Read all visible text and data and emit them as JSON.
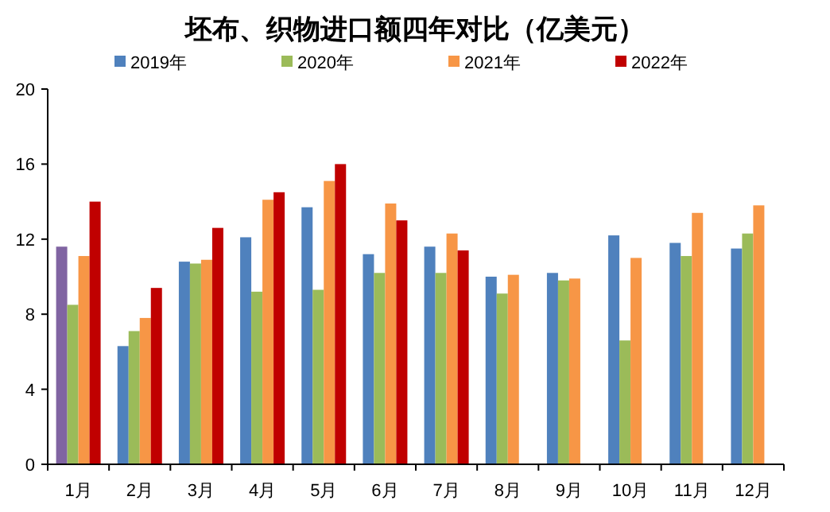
{
  "chart_data": {
    "type": "bar",
    "title": "坯布、织物进口额四年对比（亿美元）",
    "categories": [
      "1月",
      "2月",
      "3月",
      "4月",
      "5月",
      "6月",
      "7月",
      "8月",
      "9月",
      "10月",
      "11月",
      "12月"
    ],
    "series": [
      {
        "name": "2019年",
        "color": "#4f81bd",
        "colors": [
          "#8064a2",
          "#4f81bd",
          "#4f81bd",
          "#4f81bd",
          "#4f81bd",
          "#4f81bd",
          "#4f81bd",
          "#4f81bd",
          "#4f81bd",
          "#4f81bd",
          "#4f81bd",
          "#4f81bd"
        ],
        "values": [
          11.6,
          6.3,
          10.8,
          12.1,
          13.7,
          11.2,
          11.6,
          10.0,
          10.2,
          12.2,
          11.8,
          11.5
        ]
      },
      {
        "name": "2020年",
        "color": "#9bbb59",
        "values": [
          8.5,
          7.1,
          10.7,
          9.2,
          9.3,
          10.2,
          10.2,
          9.1,
          9.8,
          6.6,
          11.1,
          12.3
        ]
      },
      {
        "name": "2021年",
        "color": "#f79646",
        "values": [
          11.1,
          7.8,
          10.9,
          14.1,
          15.1,
          13.9,
          12.3,
          10.1,
          9.9,
          11.0,
          13.4,
          13.8
        ]
      },
      {
        "name": "2022年",
        "color": "#c00000",
        "values": [
          14.0,
          9.4,
          12.6,
          14.5,
          16.0,
          13.0,
          11.4,
          null,
          null,
          null,
          null,
          null
        ]
      }
    ],
    "ylim": [
      0,
      20
    ],
    "yticks": [
      0,
      4,
      8,
      12,
      16,
      20
    ],
    "grid": false,
    "legend": "top"
  }
}
